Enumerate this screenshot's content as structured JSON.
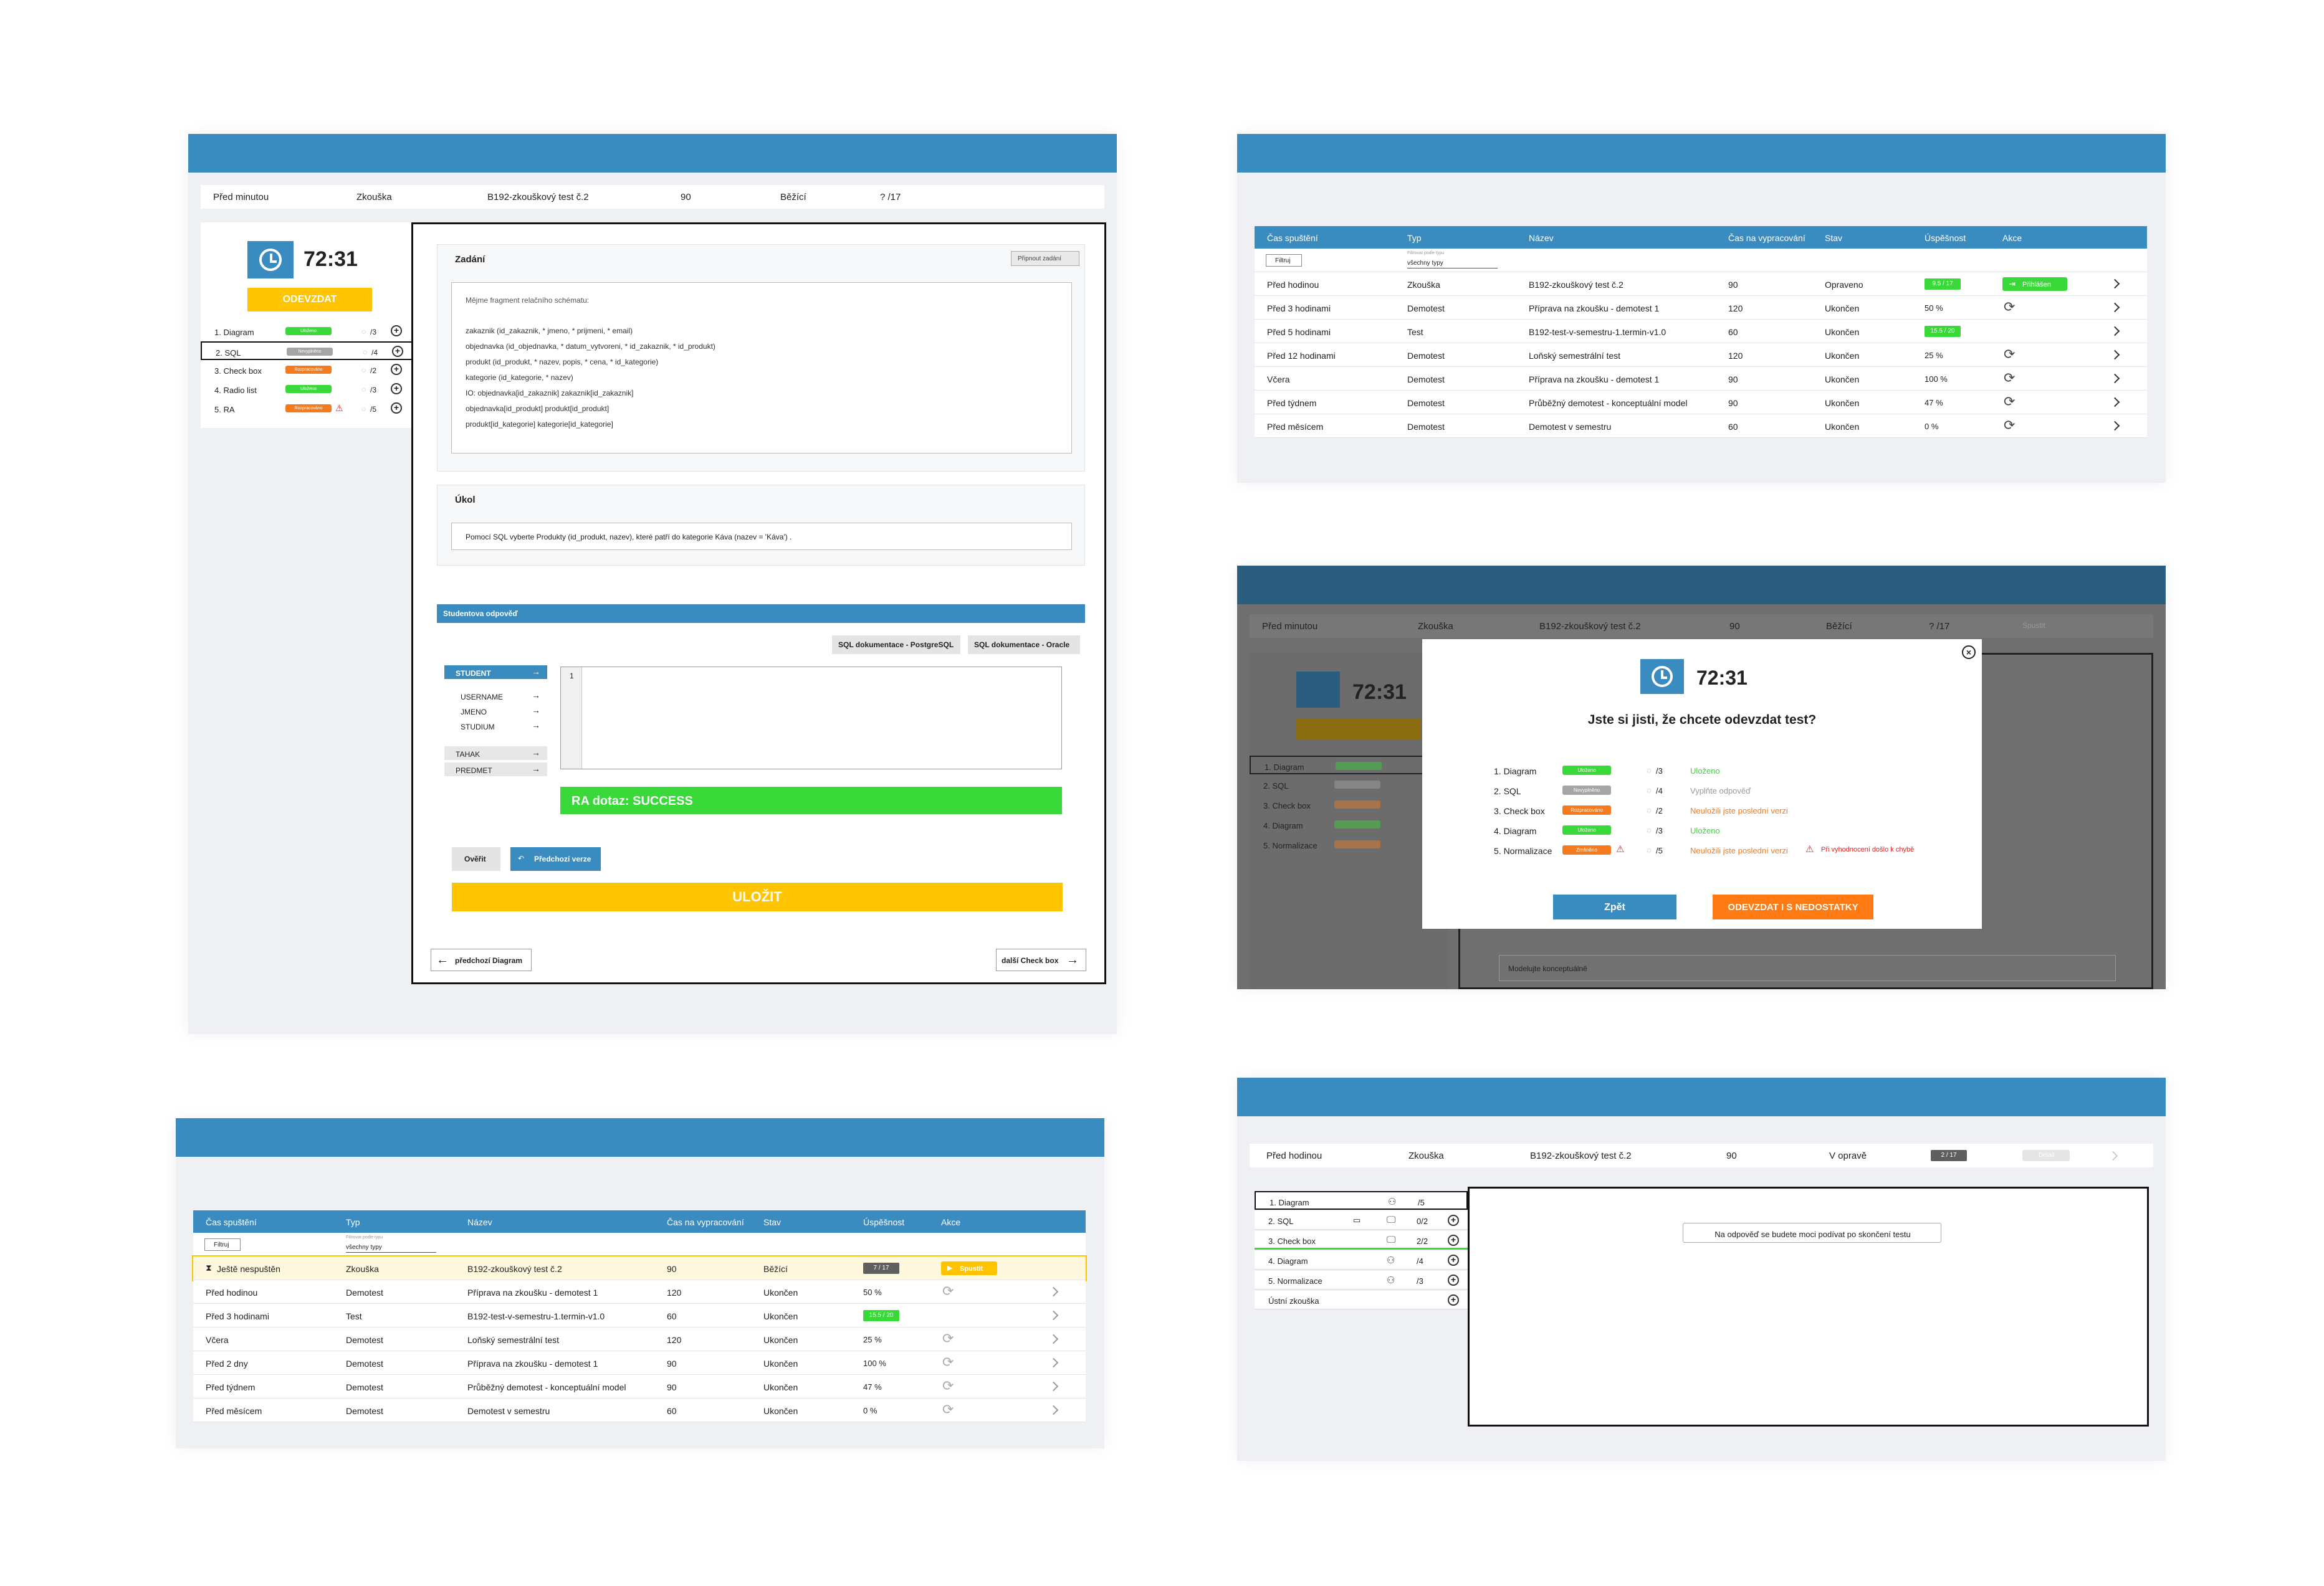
{
  "exam": {
    "header": {
      "when": "Před minutou",
      "type": "Zkouška",
      "name": "B192-zkouškový test č.2",
      "time": "90",
      "state": "Běžící",
      "score": "? /17"
    },
    "timer": "72:31",
    "submit": "ODEVZDAT",
    "questions": [
      {
        "label": "1. Diagram",
        "badge": "Uloženo",
        "color": "#3ad93a",
        "count": "/3"
      },
      {
        "label": "2. SQL",
        "badge": "Nevyplněno",
        "color": "#a5a5a5",
        "count": "/4"
      },
      {
        "label": "3. Check box",
        "badge": "Rozpracováno",
        "color": "#f47c1f",
        "count": "/2"
      },
      {
        "label": "4. Radio list",
        "badge": "Uloženo",
        "color": "#3ad93a",
        "count": "/3"
      },
      {
        "label": "5. RA",
        "badge": "Rozpracováno",
        "color": "#f47c1f",
        "count": "/5"
      }
    ],
    "assignment_title": "Zadání",
    "attach": "Připnout zadání",
    "schema_intro": "Mějme fragment relačního schématu:",
    "schema_lines": [
      "zakaznik (id_zakaznik, * jmeno, * prijmeni, * email)",
      "objednavka (id_objednavka, * datum_vytvoreni, * id_zakaznik, * id_produkt)",
      "produkt (id_produkt, * nazev, popis, * cena, * id_kategorie)",
      "kategorie (id_kategorie, * nazev)",
      "IO: objednavka[id_zakaznik]    zakaznik[id_zakaznik]",
      "objednavka[id_produkt]    produkt[id_produkt]",
      "produkt[id_kategorie]    kategorie[id_kategorie]"
    ],
    "task_title": "Úkol",
    "task_text": "Pomocí SQL vyberte Produkty (id_produkt, nazev), které patří do kategorie Káva (nazev = 'Káva') .",
    "answer_title": "Studentova odpověď",
    "doc_pg": "SQL dokumentace - PostgreSQL",
    "doc_ora": "SQL dokumentace - Oracle",
    "tables": [
      "STUDENT",
      "USERNAME",
      "JMENO",
      "STUDIUM",
      "TAHAK",
      "PREDMET"
    ],
    "line_no": "1",
    "result": "RA dotaz: SUCCESS",
    "verify": "Ověřit",
    "prev_version": "Předchozí verze",
    "save": "ULOŽIT",
    "prev_q": "předchozí Diagram",
    "next_q": "další Check box"
  },
  "history": {
    "headers": [
      "Čas spuštění",
      "Typ",
      "Název",
      "Čas na vypracování",
      "Stav",
      "Úspěšnost",
      "Akce"
    ],
    "filter": "Filtruj",
    "type_label": "Filtrovat podle typu",
    "type_value": "všechny typy",
    "attach_label": "Přihlášen",
    "rows": [
      {
        "when": "Před hodinou",
        "type": "Zkouška",
        "name": "B192-zkouškový test č.2",
        "time": "90",
        "state": "Opraveno",
        "score": "9.5 / 17"
      },
      {
        "when": "Před 3 hodinami",
        "type": "Demotest",
        "name": "Příprava na zkoušku - demotest 1",
        "time": "120",
        "state": "Ukončen",
        "score": "50 %"
      },
      {
        "when": "Před 5 hodinami",
        "type": "Test",
        "name": "B192-test-v-semestru-1.termin-v1.0",
        "time": "60",
        "state": "Ukončen",
        "score": "15.5 / 20"
      },
      {
        "when": "Před 12 hodinami",
        "type": "Demotest",
        "name": "Loňský semestrální test",
        "time": "120",
        "state": "Ukončen",
        "score": "25 %"
      },
      {
        "when": "Včera",
        "type": "Demotest",
        "name": "Příprava na zkoušku - demotest 1",
        "time": "90",
        "state": "Ukončen",
        "score": "100 %"
      },
      {
        "when": "Před týdnem",
        "type": "Demotest",
        "name": "Průběžný demotest - konceptuální model",
        "time": "90",
        "state": "Ukončen",
        "score": "47 %"
      },
      {
        "when": "Před měsícem",
        "type": "Demotest",
        "name": "Demotest v semestru",
        "time": "60",
        "state": "Ukončen",
        "score": "0 %"
      }
    ]
  },
  "modal": {
    "bg_header": {
      "when": "Před minutou",
      "type": "Zkouška",
      "name": "B192-zkouškový test č.2",
      "time": "90",
      "state": "Běžící",
      "score": "? /17",
      "action": "Spustit"
    },
    "timer": "72:31",
    "question": "Jste si jisti, že chcete odevzdat test?",
    "items": [
      {
        "label": "1. Diagram",
        "badge": "Uloženo",
        "color": "#3ad93a",
        "count": "/3",
        "msg": "Uloženo",
        "msgColor": "#3ad93a",
        "err": ""
      },
      {
        "label": "2. SQL",
        "badge": "Nevyplněno",
        "color": "#a5a5a5",
        "count": "/4",
        "msg": "Vyplňte odpověď",
        "msgColor": "#999999",
        "err": ""
      },
      {
        "label": "3. Check box",
        "badge": "Rozpracováno",
        "color": "#f47c1f",
        "count": "/2",
        "msg": "Neuložili jste poslední verzi",
        "msgColor": "#f47c1f",
        "err": ""
      },
      {
        "label": "4. Diagram",
        "badge": "Uloženo",
        "color": "#3ad93a",
        "count": "/3",
        "msg": "Uloženo",
        "msgColor": "#3ad93a",
        "err": ""
      },
      {
        "label": "5. Normalizace",
        "badge": "Změněno",
        "color": "#f47c1f",
        "count": "/5",
        "msg": "Neuložili jste poslední verzi",
        "msgColor": "#f47c1f",
        "err": "Při vyhodnocení došlo k chybě"
      }
    ],
    "back": "Zpět",
    "submit_anyway": "ODEVZDAT I S NEDOSTATKY",
    "bg_questions": [
      "1. Diagram",
      "2. SQL",
      "3. Check box",
      "4. Diagram",
      "5. Normalizace"
    ],
    "bg_note": "Modelujte konceptuálně"
  },
  "list": {
    "headers": [
      "Čas spuštění",
      "Typ",
      "Název",
      "Čas na vypracování",
      "Stav",
      "Úspěšnost",
      "Akce"
    ],
    "filter": "Filtruj",
    "type_label": "Filtrovat podle typu",
    "type_value": "všechny typy",
    "start": "Spustit",
    "rows": [
      {
        "when": "Ještě nespuštěn",
        "type": "Zkouška",
        "name": "B192-zkouškový test č.2",
        "time": "90",
        "state": "Běžící",
        "score": "7 / 17"
      },
      {
        "when": "Před hodinou",
        "type": "Demotest",
        "name": "Příprava na zkoušku - demotest 1",
        "time": "120",
        "state": "Ukončen",
        "score": "50 %"
      },
      {
        "when": "Před 3 hodinami",
        "type": "Test",
        "name": "B192-test-v-semestru-1.termin-v1.0",
        "time": "60",
        "state": "Ukončen",
        "score": "15.5 / 20"
      },
      {
        "when": "Včera",
        "type": "Demotest",
        "name": "Loňský semestrální test",
        "time": "120",
        "state": "Ukončen",
        "score": "25 %"
      },
      {
        "when": "Před 2 dny",
        "type": "Demotest",
        "name": "Příprava na zkoušku - demotest 1",
        "time": "90",
        "state": "Ukončen",
        "score": "100 %"
      },
      {
        "when": "Před týdnem",
        "type": "Demotest",
        "name": "Průběžný demotest - konceptuální model",
        "time": "90",
        "state": "Ukončen",
        "score": "47 %"
      },
      {
        "when": "Před měsícem",
        "type": "Demotest",
        "name": "Demotest v semestru",
        "time": "60",
        "state": "Ukončen",
        "score": "0 %"
      }
    ]
  },
  "review": {
    "header": {
      "when": "Před hodinou",
      "type": "Zkouška",
      "name": "B192-zkouškový test č.2",
      "time": "90",
      "state": "V opravě",
      "score": "2 / 17",
      "action": "Detail"
    },
    "items": [
      {
        "label": "1. Diagram",
        "count": "/5"
      },
      {
        "label": "2. SQL",
        "count": "0/2"
      },
      {
        "label": "3. Check box",
        "count": "2/2"
      },
      {
        "label": "4. Diagram",
        "count": "/4"
      },
      {
        "label": "5. Normalizace",
        "count": "/3"
      },
      {
        "label": "Ústní zkouška",
        "count": ""
      }
    ],
    "note": "Na odpověď se budete moci podívat po skončení testu"
  }
}
